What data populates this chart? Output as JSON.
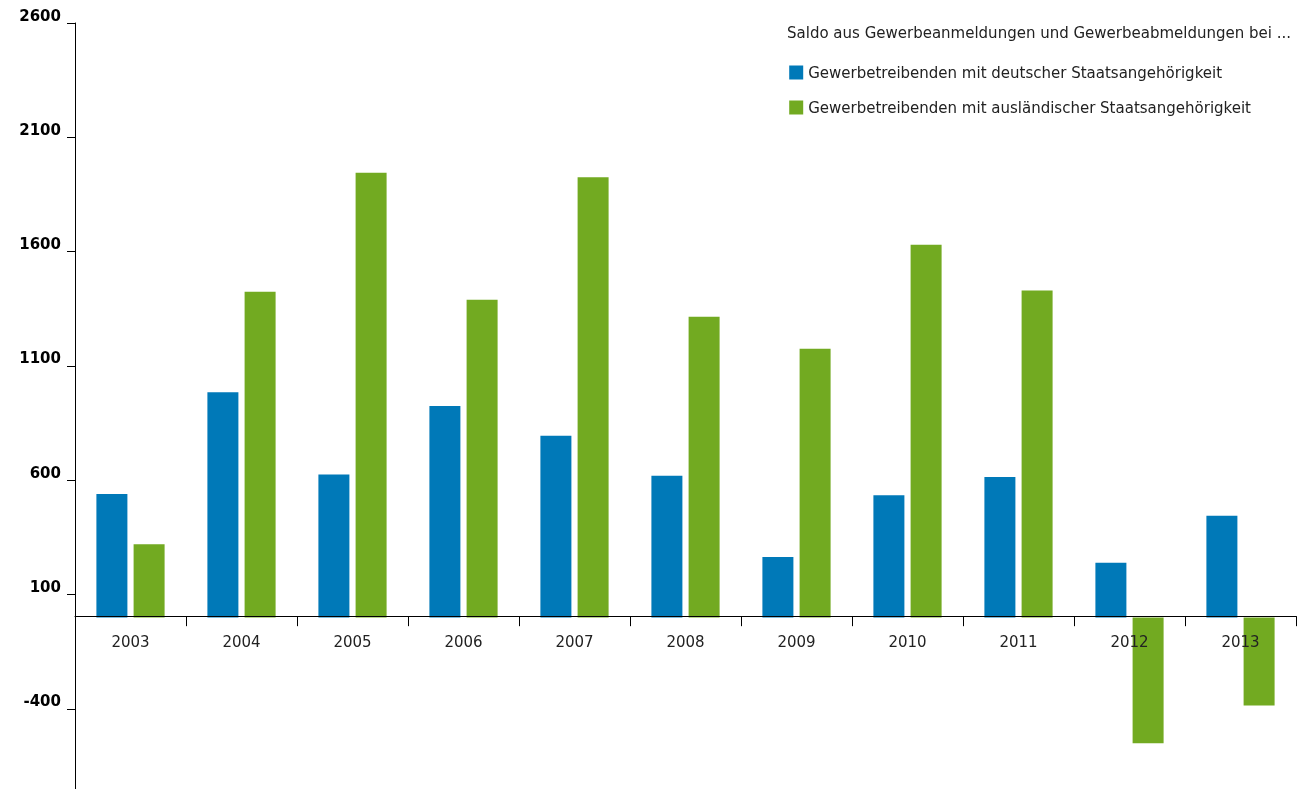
{
  "chart_data": {
    "type": "bar",
    "legend_title": "Saldo aus Gewerbeanmeldungen und Gewerbeabmeldungen bei ...",
    "categories": [
      "2003",
      "2004",
      "2005",
      "2006",
      "2007",
      "2008",
      "2009",
      "2010",
      "2011",
      "2012",
      "2013"
    ],
    "series": [
      {
        "name": "Gewerbetreibenden mit deutscher Staatsangehörigkeit",
        "color": "#0079b8",
        "values": [
          540,
          985,
          625,
          925,
          795,
          620,
          265,
          535,
          615,
          240,
          445
        ]
      },
      {
        "name": "Gewerbetreibenden mit ausländischer Staatsangehörigkeit",
        "color": "#72aa21",
        "values": [
          320,
          1425,
          1945,
          1390,
          1925,
          1315,
          1175,
          1630,
          1430,
          -550,
          -385
        ]
      }
    ],
    "ylim": [
      -750,
      2600
    ],
    "yticks": [
      -400,
      100,
      600,
      1100,
      1600,
      2100,
      2600
    ],
    "grid": false,
    "legend": "top right"
  }
}
